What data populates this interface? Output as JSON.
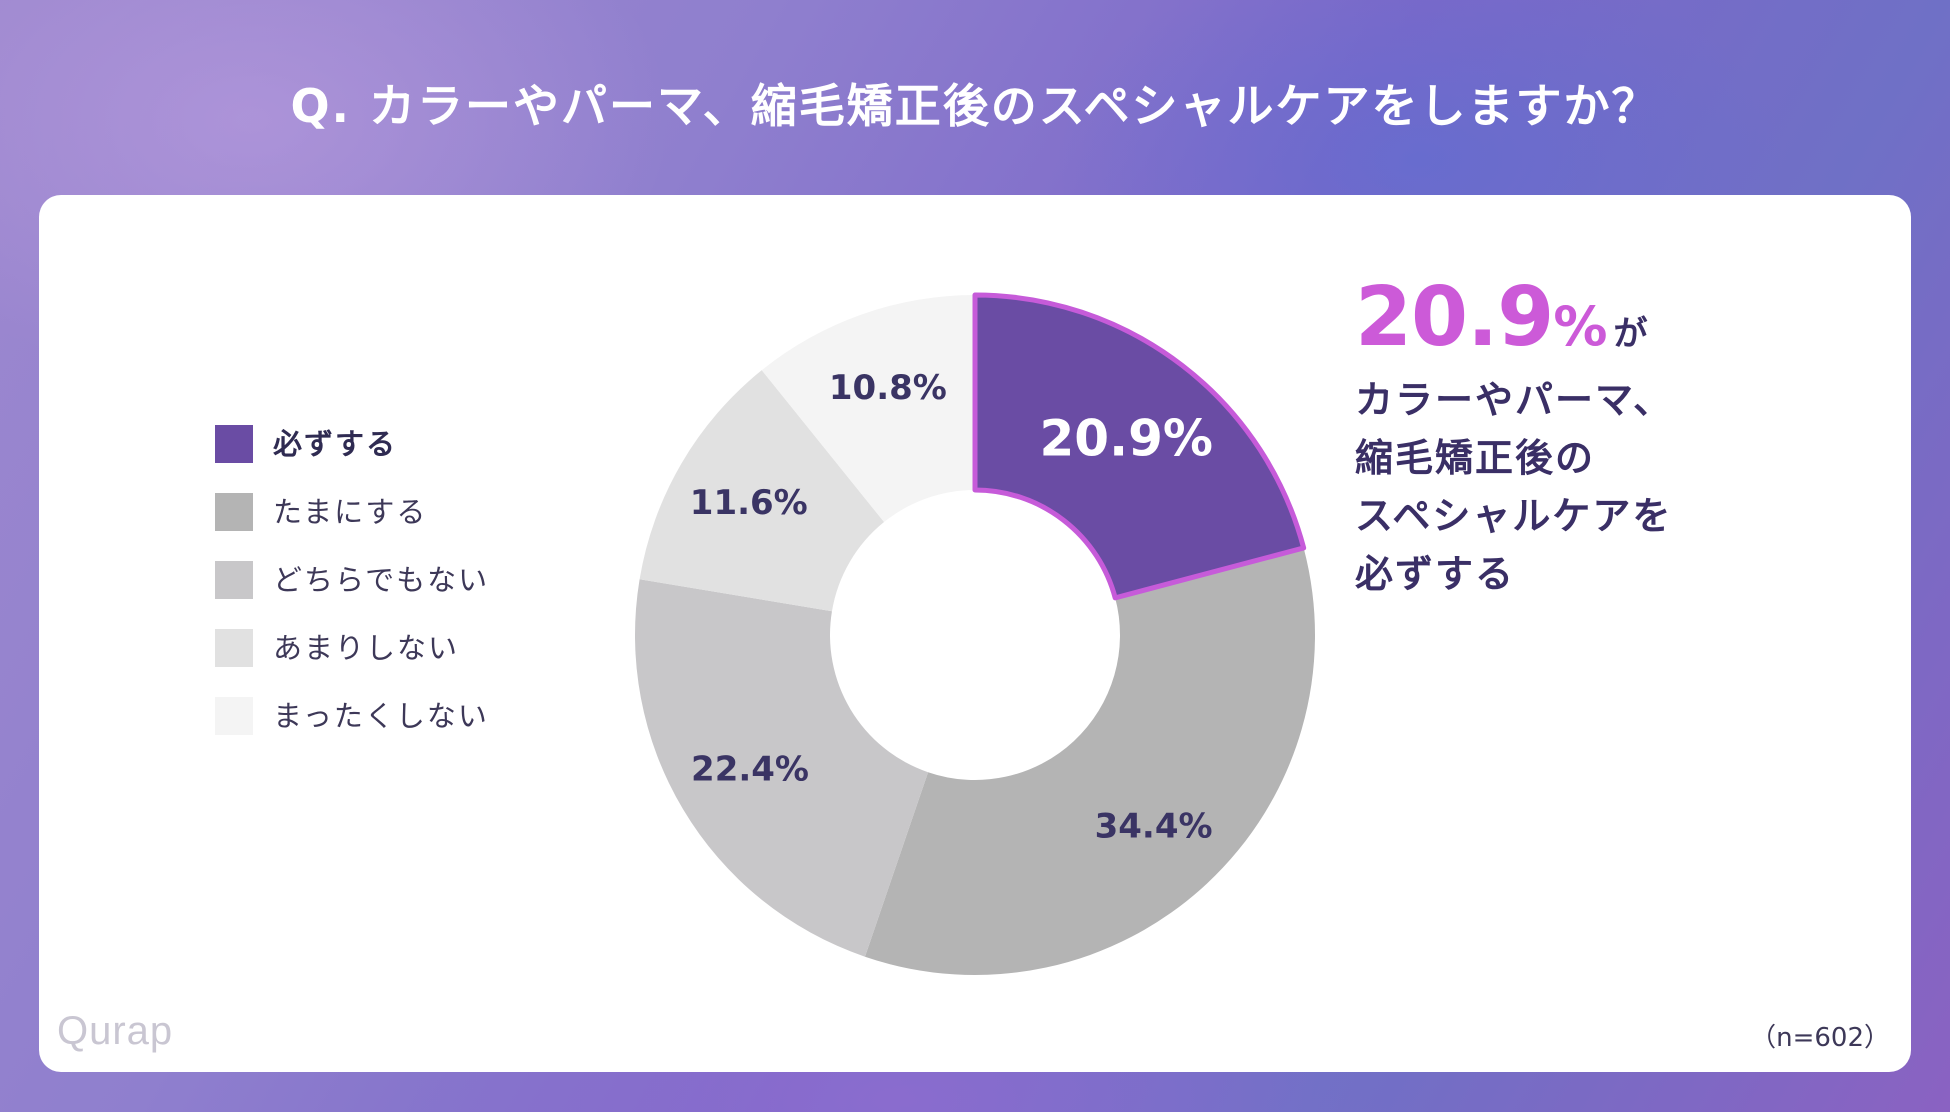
{
  "title": "Q. カラーやパーマ、縮毛矯正後のスペシャルケアをしますか？",
  "legend": [
    {
      "label": "必ずする",
      "color": "#6a4ca4",
      "strong": true
    },
    {
      "label": "たまにする",
      "color": "#b4b4b4",
      "strong": false
    },
    {
      "label": "どちらでもない",
      "color": "#c8c7c9",
      "strong": false
    },
    {
      "label": "あまりしない",
      "color": "#e1e1e1",
      "strong": false
    },
    {
      "label": "まったくしない",
      "color": "#f4f4f4",
      "strong": false
    }
  ],
  "chart_data": {
    "type": "pie",
    "donut": true,
    "categories": [
      "必ずする",
      "たまにする",
      "どちらでもない",
      "あまりしない",
      "まったくしない"
    ],
    "values": [
      20.9,
      34.4,
      22.4,
      11.6,
      10.8
    ],
    "value_labels": [
      "20.9%",
      "34.4%",
      "22.4%",
      "11.6%",
      "10.8%"
    ],
    "colors": [
      "#6a4ca4",
      "#b4b4b4",
      "#c8c7c9",
      "#e1e1e1",
      "#f4f4f4"
    ],
    "highlight_index": 0,
    "highlight_stroke": "#c65bd9",
    "start_angle": "12 o'clock",
    "direction": "clockwise"
  },
  "callout": {
    "value": "20.9",
    "unit": "%",
    "particle": "が",
    "lines": [
      "カラーやパーマ、",
      "縮毛矯正後の",
      "スペシャルケアを",
      "必ずする"
    ]
  },
  "logo": "Qurap",
  "sample_size": "（n=602）"
}
